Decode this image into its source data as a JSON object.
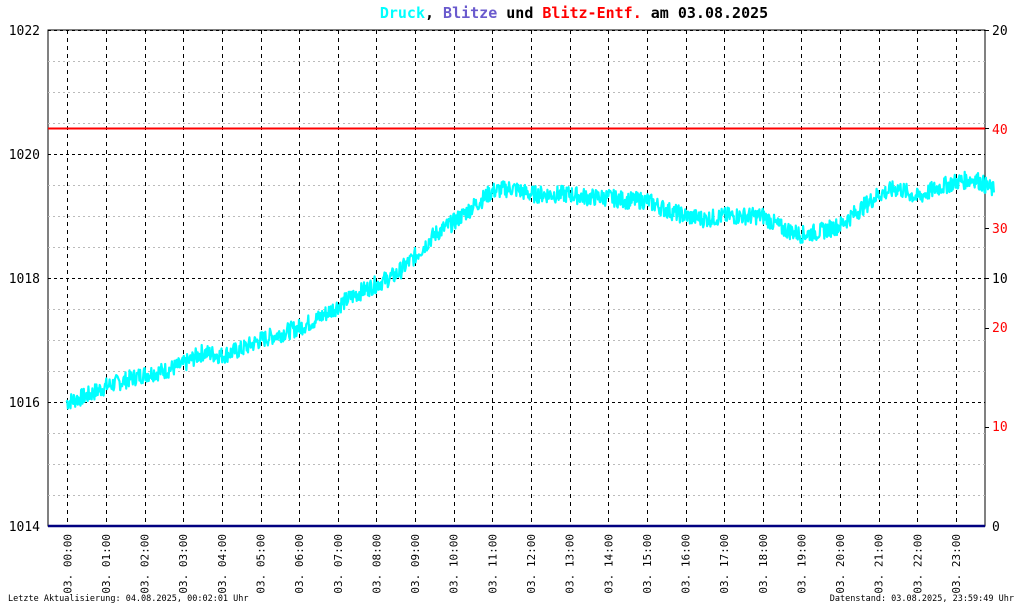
{
  "title": {
    "part1": "Druck",
    "sep1": ", ",
    "part2": "Blitze",
    "part3": " und ",
    "part4": "Blitz-Entf.",
    "part5": " am 03.08.2025"
  },
  "colors": {
    "druck": "#00ffff",
    "blitze": "#6a5acd",
    "entf": "#ff0000",
    "text": "#000000",
    "baseline": "#000080"
  },
  "footer": {
    "left": "Letzte Aktualisierung: 04.08.2025, 00:02:01 Uhr",
    "right": "Datenstand: 03.08.2025, 23:59:49 Uhr"
  },
  "chart_data": {
    "type": "line",
    "title": "Druck, Blitze und Blitz-Entf. am 03.08.2025",
    "x_ticks": [
      "03. 00:00",
      "03. 01:00",
      "03. 02:00",
      "03. 03:00",
      "03. 04:00",
      "03. 05:00",
      "03. 06:00",
      "03. 07:00",
      "03. 08:00",
      "03. 09:00",
      "03. 10:00",
      "03. 11:00",
      "03. 12:00",
      "03. 13:00",
      "03. 14:00",
      "03. 15:00",
      "03. 16:00",
      "03. 17:00",
      "03. 18:00",
      "03. 19:00",
      "03. 20:00",
      "03. 21:00",
      "03. 22:00",
      "03. 23:00"
    ],
    "y_left": {
      "ticks": [
        "1014",
        "1016",
        "1018",
        "1020",
        "1022"
      ],
      "range": [
        1014,
        1022
      ]
    },
    "y_right_black": {
      "ticks": [
        "0",
        "10",
        "20"
      ],
      "values": [
        0,
        10,
        20
      ]
    },
    "y_right_red": {
      "ticks": [
        "10",
        "20",
        "30",
        "40"
      ],
      "values": [
        10,
        20,
        30,
        40
      ]
    },
    "grid": true,
    "series": [
      {
        "name": "Druck",
        "hours": [
          0,
          0.5,
          1,
          1.5,
          2,
          2.5,
          3,
          3.5,
          4,
          4.5,
          5,
          5.5,
          6,
          6.5,
          7,
          7.5,
          8,
          8.5,
          9,
          9.5,
          10,
          10.5,
          11,
          11.5,
          12,
          12.5,
          13,
          13.5,
          14,
          14.5,
          15,
          15.5,
          16,
          16.5,
          17,
          17.5,
          18,
          18.5,
          19,
          19.5,
          20,
          20.5,
          21,
          21.5,
          22,
          22.5,
          23,
          23.5,
          24
        ],
        "values": [
          1016.0,
          1016.1,
          1016.25,
          1016.35,
          1016.45,
          1016.5,
          1016.6,
          1016.8,
          1016.75,
          1016.85,
          1017.0,
          1017.1,
          1017.2,
          1017.35,
          1017.55,
          1017.75,
          1017.9,
          1018.05,
          1018.35,
          1018.7,
          1018.9,
          1019.15,
          1019.4,
          1019.45,
          1019.35,
          1019.35,
          1019.35,
          1019.3,
          1019.3,
          1019.25,
          1019.25,
          1019.1,
          1019.0,
          1018.95,
          1019.0,
          1019.0,
          1019.0,
          1018.8,
          1018.7,
          1018.75,
          1018.85,
          1019.1,
          1019.35,
          1019.45,
          1019.3,
          1019.45,
          1019.55,
          1019.6,
          1019.4
        ]
      },
      {
        "name": "Blitz-Entf.",
        "constant_red_axis_value": 40
      }
    ]
  }
}
